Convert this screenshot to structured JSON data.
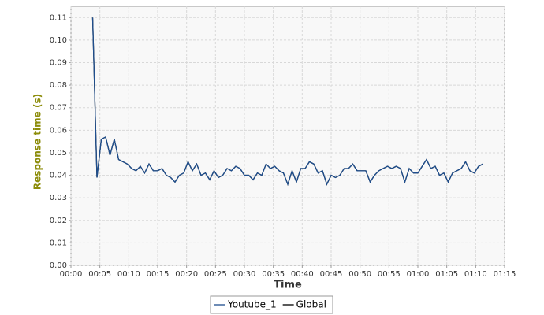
{
  "chart_data": {
    "type": "line",
    "y_label": "Response time (s)",
    "x_label": "Time",
    "xlim": [
      0,
      75
    ],
    "ylim": [
      0,
      0.115
    ],
    "xticks": [
      {
        "value": 0,
        "label": "00:00"
      },
      {
        "value": 5,
        "label": "00:05"
      },
      {
        "value": 10,
        "label": "00:10"
      },
      {
        "value": 15,
        "label": "00:15"
      },
      {
        "value": 20,
        "label": "00:20"
      },
      {
        "value": 25,
        "label": "00:25"
      },
      {
        "value": 30,
        "label": "00:30"
      },
      {
        "value": 35,
        "label": "00:35"
      },
      {
        "value": 40,
        "label": "00:40"
      },
      {
        "value": 45,
        "label": "00:45"
      },
      {
        "value": 50,
        "label": "00:50"
      },
      {
        "value": 55,
        "label": "00:55"
      },
      {
        "value": 60,
        "label": "01:00"
      },
      {
        "value": 65,
        "label": "01:05"
      },
      {
        "value": 70,
        "label": "01:10"
      },
      {
        "value": 75,
        "label": "01:15"
      }
    ],
    "yticks": [
      {
        "value": 0,
        "label": "0.00"
      },
      0.01,
      0.02,
      0.03,
      0.04,
      0.05,
      0.06,
      0.07,
      0.08,
      0.09,
      {
        "value": 0.1,
        "label": "0.10"
      },
      0.11
    ],
    "grid": true,
    "x": [
      3.75,
      4.5,
      5.25,
      6,
      6.75,
      7.5,
      8.25,
      9,
      9.75,
      10.5,
      11.25,
      12,
      12.75,
      13.5,
      14.25,
      15,
      15.75,
      16.5,
      17.25,
      18,
      18.75,
      19.5,
      20.25,
      21,
      21.75,
      22.5,
      23.25,
      24,
      24.75,
      25.5,
      26.25,
      27,
      27.75,
      28.5,
      29.25,
      30,
      30.75,
      31.5,
      32.25,
      33,
      33.75,
      34.5,
      35.25,
      36,
      36.75,
      37.5,
      38.25,
      39,
      39.75,
      40.5,
      41.25,
      42,
      42.75,
      43.5,
      44.25,
      45,
      45.75,
      46.5,
      47.25,
      48,
      48.75,
      49.5,
      50.25,
      51,
      51.75,
      52.5,
      53.25,
      54,
      54.75,
      55.5,
      56.25,
      57,
      57.75,
      58.5,
      59.25,
      60,
      60.75,
      61.5,
      62.25,
      63,
      63.75,
      64.5,
      65.25,
      66,
      66.75,
      67.5,
      68.25,
      69,
      69.75,
      70.5,
      71.25
    ],
    "series": [
      {
        "name": "Youtube_1",
        "color": "#1f4f8f",
        "values": [
          0.11,
          0.039,
          0.056,
          0.057,
          0.049,
          0.056,
          0.047,
          0.046,
          0.045,
          0.043,
          0.042,
          0.044,
          0.041,
          0.045,
          0.042,
          0.042,
          0.043,
          0.04,
          0.039,
          0.037,
          0.04,
          0.041,
          0.046,
          0.042,
          0.045,
          0.04,
          0.041,
          0.038,
          0.042,
          0.039,
          0.04,
          0.043,
          0.042,
          0.044,
          0.043,
          0.04,
          0.04,
          0.038,
          0.041,
          0.04,
          0.045,
          0.043,
          0.044,
          0.042,
          0.041,
          0.036,
          0.042,
          0.037,
          0.043,
          0.043,
          0.046,
          0.045,
          0.041,
          0.042,
          0.036,
          0.04,
          0.039,
          0.04,
          0.043,
          0.043,
          0.045,
          0.042,
          0.042,
          0.042,
          0.037,
          0.04,
          0.042,
          0.043,
          0.044,
          0.043,
          0.044,
          0.043,
          0.037,
          0.043,
          0.041,
          0.041,
          0.044,
          0.047,
          0.043,
          0.044,
          0.04,
          0.041,
          0.037,
          0.041,
          0.042,
          0.043,
          0.046,
          0.042,
          0.041,
          0.044,
          0.045
        ]
      },
      {
        "name": "Global",
        "color": "#000000",
        "values": [
          0.11,
          0.039,
          0.056,
          0.057,
          0.049,
          0.056,
          0.047,
          0.046,
          0.045,
          0.043,
          0.042,
          0.044,
          0.041,
          0.045,
          0.042,
          0.042,
          0.043,
          0.04,
          0.039,
          0.037,
          0.04,
          0.041,
          0.046,
          0.042,
          0.045,
          0.04,
          0.041,
          0.038,
          0.042,
          0.039,
          0.04,
          0.043,
          0.042,
          0.044,
          0.043,
          0.04,
          0.04,
          0.038,
          0.041,
          0.04,
          0.045,
          0.043,
          0.044,
          0.042,
          0.041,
          0.036,
          0.042,
          0.037,
          0.043,
          0.043,
          0.046,
          0.045,
          0.041,
          0.042,
          0.036,
          0.04,
          0.039,
          0.04,
          0.043,
          0.043,
          0.045,
          0.042,
          0.042,
          0.042,
          0.037,
          0.04,
          0.042,
          0.043,
          0.044,
          0.043,
          0.044,
          0.043,
          0.037,
          0.043,
          0.041,
          0.041,
          0.044,
          0.047,
          0.043,
          0.044,
          0.04,
          0.041,
          0.037,
          0.041,
          0.042,
          0.043,
          0.046,
          0.042,
          0.041,
          0.044,
          0.045
        ]
      }
    ]
  }
}
